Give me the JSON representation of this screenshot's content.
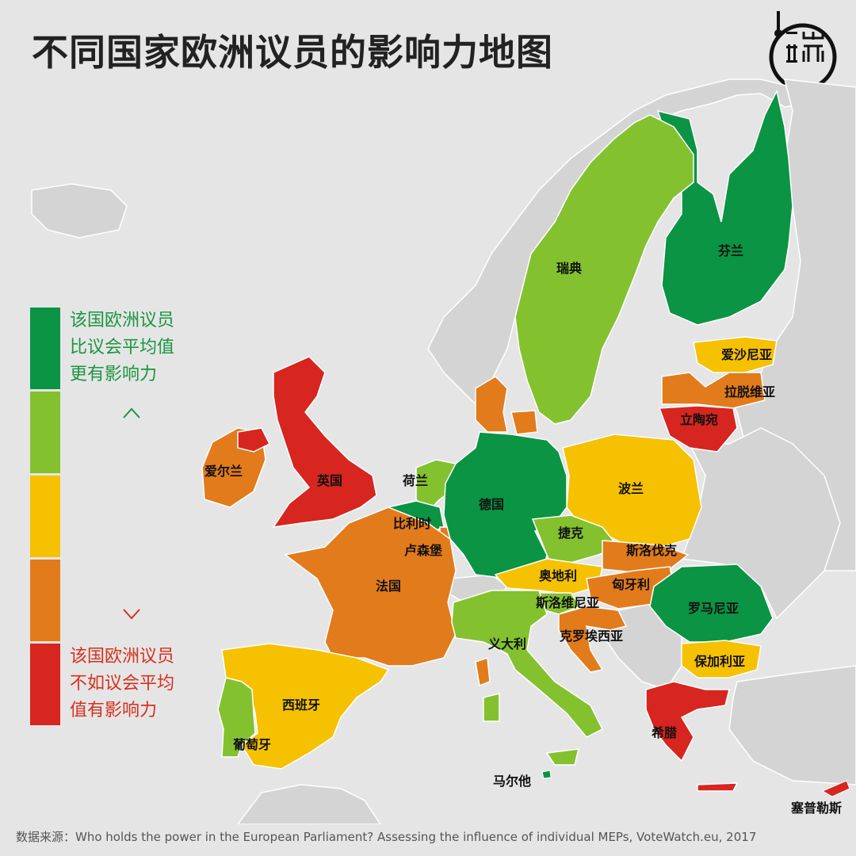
{
  "title": "不同国家欧洲议员的影响力地图",
  "logo": {
    "icon": "duan-media-logo"
  },
  "legend": {
    "top_text": "该国欧洲议员\n比议会平均值\n更有影响力",
    "bottom_text": "该国欧洲议员\n不如议会平均\n值有影响力",
    "scale_colors": [
      "#0a9444",
      "#84c12f",
      "#f5c100",
      "#e27b1b",
      "#d7251f"
    ]
  },
  "colors": {
    "background": "#e5e5e5",
    "non_eu_land": "#d4d4d4",
    "border": "#ffffff"
  },
  "countries": {
    "finland": {
      "label": "芬兰",
      "level": 1
    },
    "sweden": {
      "label": "瑞典",
      "level": 2
    },
    "estonia": {
      "label": "爱沙尼亚",
      "level": 3
    },
    "latvia": {
      "label": "拉脱维亚",
      "level": 4
    },
    "lithuania": {
      "label": "立陶宛",
      "level": 5
    },
    "ireland": {
      "label": "爱尔兰",
      "level": 4
    },
    "uk": {
      "label": "英国",
      "level": 5
    },
    "netherlands": {
      "label": "荷兰",
      "level": 2
    },
    "belgium": {
      "label": "比利时",
      "level": 1
    },
    "luxembourg": {
      "label": "卢森堡",
      "level": 4
    },
    "germany": {
      "label": "德国",
      "level": 1
    },
    "poland": {
      "label": "波兰",
      "level": 3
    },
    "czech": {
      "label": "捷克",
      "level": 2
    },
    "slovakia": {
      "label": "斯洛伐克",
      "level": 4
    },
    "austria": {
      "label": "奥地利",
      "level": 3
    },
    "hungary": {
      "label": "匈牙利",
      "level": 4
    },
    "slovenia": {
      "label": "斯洛维尼亚",
      "level": 2
    },
    "croatia": {
      "label": "克罗埃西亚",
      "level": 4
    },
    "france": {
      "label": "法国",
      "level": 4
    },
    "italy": {
      "label": "义大利",
      "level": 2
    },
    "romania": {
      "label": "罗马尼亚",
      "level": 1
    },
    "bulgaria": {
      "label": "保加利亚",
      "level": 3
    },
    "spain": {
      "label": "西班牙",
      "level": 3
    },
    "portugal": {
      "label": "葡萄牙",
      "level": 2
    },
    "greece": {
      "label": "希腊",
      "level": 5
    },
    "malta": {
      "label": "马尔他",
      "level": 1
    },
    "cyprus": {
      "label": "塞普勒斯",
      "level": 5
    },
    "denmark": {
      "label": "",
      "level": 4
    }
  },
  "source": "数据来源：Who holds the power in the European Parliament? Assessing the influence of individual MEPs, VoteWatch.eu, 2017"
}
